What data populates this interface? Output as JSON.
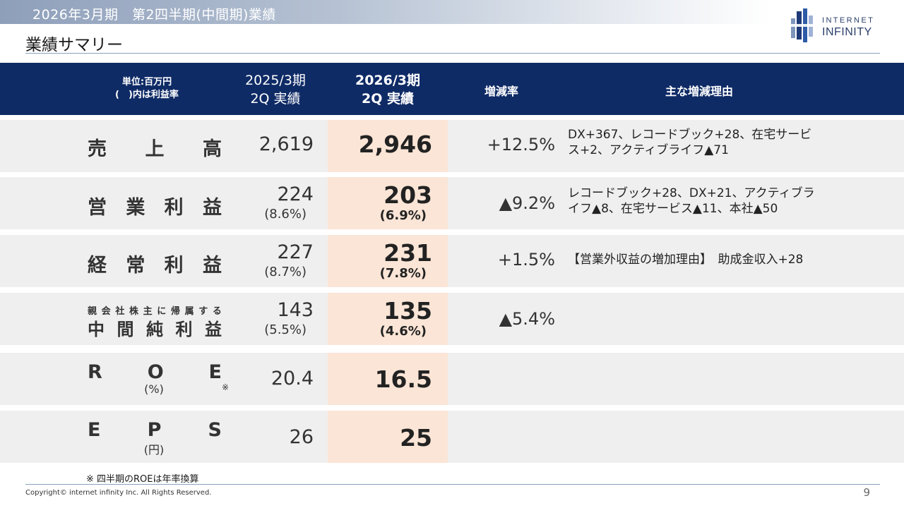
{
  "header": {
    "subtitle": "2026年3月期　第2四半期(中間期)業績",
    "title": "業績サマリー"
  },
  "logo": {
    "line1": "INTERNET",
    "line2": "INFINITY",
    "icon": "building-bars-logo",
    "color": "#2b3f6b"
  },
  "table": {
    "header": {
      "unit_line1": "単位:百万円",
      "unit_line2": "(　)内は利益率",
      "col2025_line1": "2025/3期",
      "col2025_line2": "2Q 実績",
      "col2026_line1": "2026/3期",
      "col2026_line2": "2Q 実績",
      "rate": "増減率",
      "reason": "主な増減理由"
    },
    "rows": [
      {
        "label": [
          "売",
          "上",
          "高"
        ],
        "v2025": "2,619",
        "v2026": "2,946",
        "rate": "+12.5%",
        "reason_line1": "DX+367、レコードブック+28、在宅サービ",
        "reason_line2": "ス+2、アクティブライフ▲71"
      },
      {
        "label": [
          "営",
          "業",
          "利",
          "益"
        ],
        "v2025": "224",
        "p2025": "(8.6%)",
        "v2026": "203",
        "p2026": "(6.9%)",
        "rate": "▲9.2%",
        "reason_line1": "レコードブック+28、DX+21、アクティブラ",
        "reason_line2": "イフ▲8、在宅サービス▲11、本社▲50"
      },
      {
        "label": [
          "経",
          "常",
          "利",
          "益"
        ],
        "v2025": "227",
        "p2025": "(8.7%)",
        "v2026": "231",
        "p2026": "(7.8%)",
        "rate": "+1.5%",
        "reason_line1": "【営業外収益の増加理由】　助成金収入+28"
      },
      {
        "sublabel": [
          "親",
          "会",
          "社",
          "株",
          "主",
          "に",
          "帰",
          "属",
          "す",
          "る"
        ],
        "label": [
          "中",
          "間",
          "純",
          "利",
          "益"
        ],
        "v2025": "143",
        "p2025": "(5.5%)",
        "v2026": "135",
        "p2026": "(4.6%)",
        "rate": "▲5.4%"
      },
      {
        "label": [
          "R",
          "O",
          "E"
        ],
        "unit": "(%)",
        "note_mark": "※",
        "v2025": "20.4",
        "v2026": "16.5"
      },
      {
        "label": [
          "E",
          "P",
          "S"
        ],
        "unit": "(円)",
        "v2025": "26",
        "v2026": "25"
      }
    ]
  },
  "footnote": "※ 四半期のROEは年率換算",
  "copyright": "Copyright© internet infinity Inc. All Rights Reserved.",
  "page_number": "9",
  "colors": {
    "header_bg": "#0f2b66",
    "row_bg": "#efefef",
    "highlight": "#fbe5d6"
  }
}
